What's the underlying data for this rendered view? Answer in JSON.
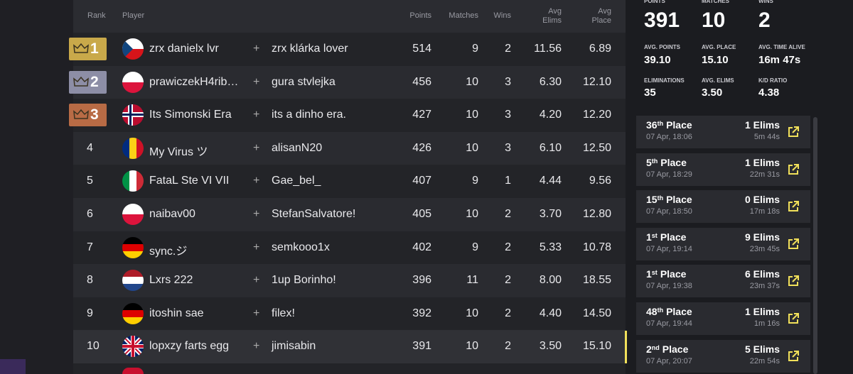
{
  "table": {
    "headers": [
      "Rank",
      "Player",
      "Points",
      "Matches",
      "Wins",
      "Avg Elims",
      "Avg Place"
    ],
    "separator": "+",
    "rows": [
      {
        "rank": "1",
        "player": "zrx danielx lvr",
        "partner": "zrx klárka lover",
        "points": "514",
        "matches": "9",
        "wins": "2",
        "avg_elims": "11.56",
        "avg_place": "6.89"
      },
      {
        "rank": "2",
        "player": "prawiczekH4rib…",
        "partner": "gura stvlejka",
        "points": "456",
        "matches": "10",
        "wins": "3",
        "avg_elims": "6.30",
        "avg_place": "12.10"
      },
      {
        "rank": "3",
        "player": "Its Simonski Era",
        "partner": "its a dinho era.",
        "points": "427",
        "matches": "10",
        "wins": "3",
        "avg_elims": "4.20",
        "avg_place": "12.20"
      },
      {
        "rank": "4",
        "player": "My Virus ツ",
        "partner": "alisanN20",
        "points": "426",
        "matches": "10",
        "wins": "3",
        "avg_elims": "6.10",
        "avg_place": "12.50"
      },
      {
        "rank": "5",
        "player": "FataL Ste VI VII",
        "partner": "Gae_bel_",
        "points": "407",
        "matches": "9",
        "wins": "1",
        "avg_elims": "4.44",
        "avg_place": "9.56"
      },
      {
        "rank": "6",
        "player": "naibav00",
        "partner": "StefanSalvatore!",
        "points": "405",
        "matches": "10",
        "wins": "2",
        "avg_elims": "3.70",
        "avg_place": "12.80"
      },
      {
        "rank": "7",
        "player": "sync.ジ",
        "partner": "semkooo1x",
        "points": "402",
        "matches": "9",
        "wins": "2",
        "avg_elims": "5.33",
        "avg_place": "10.78"
      },
      {
        "rank": "8",
        "player": "Lxrs 222",
        "partner": "1up Borinho!",
        "points": "396",
        "matches": "11",
        "wins": "2",
        "avg_elims": "8.00",
        "avg_place": "18.55"
      },
      {
        "rank": "9",
        "player": "itoshin sae",
        "partner": "filex!",
        "points": "392",
        "matches": "10",
        "wins": "2",
        "avg_elims": "4.40",
        "avg_place": "14.50"
      },
      {
        "rank": "10",
        "player": "lopxzy farts egg",
        "partner": "jimisabin",
        "points": "391",
        "matches": "10",
        "wins": "2",
        "avg_elims": "3.50",
        "avg_place": "15.10"
      }
    ]
  },
  "stats": [
    {
      "label": "POINTS",
      "value": "391"
    },
    {
      "label": "MATCHES",
      "value": "10"
    },
    {
      "label": "WINS",
      "value": "2"
    },
    {
      "label": "AVG. POINTS",
      "value": "39.10"
    },
    {
      "label": "AVG. PLACE",
      "value": "15.10"
    },
    {
      "label": "AVG. TIME ALIVE",
      "value": "16m 47s"
    },
    {
      "label": "ELIMINATIONS",
      "value": "35"
    },
    {
      "label": "AVG. ELIMS",
      "value": "3.50"
    },
    {
      "label": "K/D RATIO",
      "value": "4.38"
    }
  ],
  "matches": [
    {
      "place": "36",
      "suffix": "th",
      "label": "Place",
      "date": "07 Apr, 18:06",
      "elims": "1 Elims",
      "time": "5m 44s"
    },
    {
      "place": "5",
      "suffix": "th",
      "label": "Place",
      "date": "07 Apr, 18:29",
      "elims": "1 Elims",
      "time": "22m 31s"
    },
    {
      "place": "15",
      "suffix": "th",
      "label": "Place",
      "date": "07 Apr, 18:50",
      "elims": "0 Elims",
      "time": "17m 18s"
    },
    {
      "place": "1",
      "suffix": "st",
      "label": "Place",
      "date": "07 Apr, 19:14",
      "elims": "9 Elims",
      "time": "23m 45s"
    },
    {
      "place": "1",
      "suffix": "st",
      "label": "Place",
      "date": "07 Apr, 19:38",
      "elims": "6 Elims",
      "time": "23m 37s"
    },
    {
      "place": "48",
      "suffix": "th",
      "label": "Place",
      "date": "07 Apr, 19:44",
      "elims": "1 Elims",
      "time": "1m 16s"
    },
    {
      "place": "2",
      "suffix": "nd",
      "label": "Place",
      "date": "07 Apr, 20:07",
      "elims": "5 Elims",
      "time": "22m 54s"
    }
  ]
}
